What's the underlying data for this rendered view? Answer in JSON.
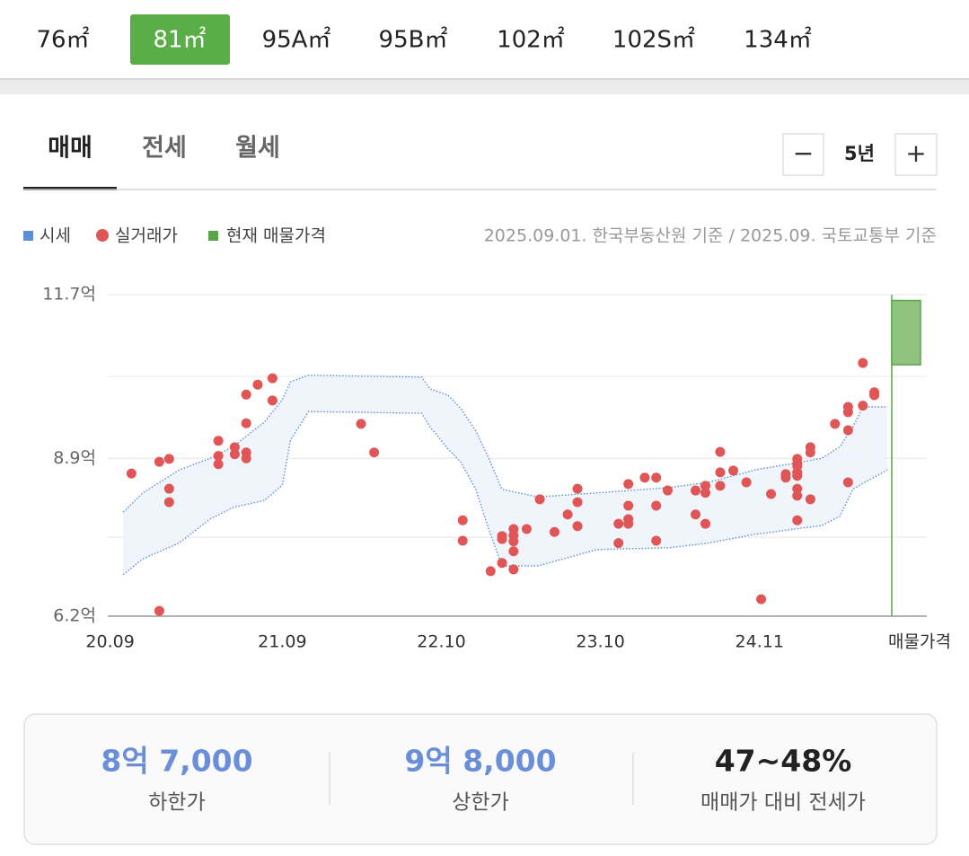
{
  "area_tabs": {
    "items": [
      "76㎡",
      "81㎡",
      "95A㎡",
      "95B㎡",
      "102㎡",
      "102S㎡",
      "134㎡"
    ],
    "active": 1
  },
  "trade_tabs": {
    "items": [
      "매매",
      "전세",
      "월세"
    ],
    "active": 0
  },
  "period": {
    "label": "5년",
    "minus": "−",
    "plus": "+"
  },
  "source_note": "2025.09.01. 한국부동산원 기준 / 2025.09. 국토교통부 기준",
  "chart_data": {
    "type": "scatter",
    "xlim": [
      2020.62,
      2025.45
    ],
    "xticks": [
      {
        "value": 2020.7,
        "label": "20.09"
      },
      {
        "value": 2021.75,
        "label": "21.09"
      },
      {
        "value": 2022.72,
        "label": "22.10"
      },
      {
        "value": 2023.69,
        "label": "23.10"
      },
      {
        "value": 2024.66,
        "label": "24.11"
      }
    ],
    "ylim": [
      6.2,
      11.7
    ],
    "yticks": [
      {
        "value": 11.7,
        "label": "11.7억"
      },
      {
        "value": 8.9,
        "label": "8.9억"
      },
      {
        "value": 6.2,
        "label": "6.2억"
      }
    ],
    "grid": true,
    "band": {
      "name": "시세",
      "color": "#5b8ed6",
      "x": [
        2020.78,
        2020.9,
        2021.12,
        2021.31,
        2021.45,
        2021.64,
        2021.75,
        2021.8,
        2021.91,
        2022.6,
        2022.65,
        2022.76,
        2022.84,
        2022.93,
        2023.01,
        2023.09,
        2023.31,
        2023.67,
        2024.11,
        2024.35,
        2024.63,
        2025.04,
        2025.15,
        2025.23,
        2025.29,
        2025.44
      ],
      "upper": [
        7.98,
        8.31,
        8.7,
        8.9,
        9.1,
        9.52,
        9.9,
        10.21,
        10.32,
        10.29,
        10.09,
        9.98,
        9.75,
        9.37,
        8.9,
        8.37,
        8.24,
        8.31,
        8.4,
        8.49,
        8.7,
        8.9,
        9.1,
        9.44,
        9.78,
        9.78
      ],
      "lower": [
        6.91,
        7.18,
        7.45,
        7.86,
        8.06,
        8.18,
        8.44,
        9.21,
        9.7,
        9.67,
        9.44,
        9.06,
        8.83,
        8.37,
        7.68,
        7.06,
        7.06,
        7.34,
        7.37,
        7.45,
        7.6,
        7.75,
        7.91,
        8.37,
        8.47,
        8.7
      ]
    },
    "series": [
      {
        "name": "실거래가",
        "color": "#e05555",
        "x": [
          2020.83,
          2021.0,
          2021.06,
          2021.06,
          2021.06,
          2021.0,
          2021.36,
          2021.36,
          2021.36,
          2021.46,
          2021.46,
          2021.53,
          2021.53,
          2021.53,
          2021.53,
          2021.6,
          2021.69,
          2021.69,
          2022.23,
          2022.31,
          2022.85,
          2022.85,
          2023.02,
          2023.09,
          2023.09,
          2023.09,
          2023.16,
          2023.16,
          2023.16,
          2023.16,
          2023.16,
          2023.24,
          2023.32,
          2023.41,
          2023.49,
          2023.55,
          2023.55,
          2023.55,
          2023.8,
          2023.8,
          2023.86,
          2023.86,
          2023.86,
          2023.86,
          2023.96,
          2024.03,
          2024.03,
          2024.03,
          2024.1,
          2024.27,
          2024.27,
          2024.33,
          2024.33,
          2024.33,
          2024.42,
          2024.42,
          2024.42,
          2024.5,
          2024.58,
          2024.67,
          2024.73,
          2024.82,
          2024.82,
          2024.89,
          2024.89,
          2024.89,
          2024.89,
          2024.89,
          2024.89,
          2024.89,
          2024.89,
          2024.97,
          2024.97,
          2024.97,
          2025.12,
          2025.2,
          2025.2,
          2025.2,
          2025.2,
          2025.29,
          2025.29,
          2025.36,
          2025.36
        ],
        "values": [
          8.64,
          8.84,
          8.89,
          8.38,
          8.15,
          6.29,
          9.2,
          8.94,
          8.8,
          9.09,
          8.97,
          9.99,
          9.5,
          9.0,
          8.9,
          10.16,
          10.27,
          9.89,
          9.49,
          9.0,
          7.84,
          7.49,
          6.97,
          7.57,
          7.52,
          7.11,
          7.69,
          7.58,
          7.48,
          7.31,
          7.0,
          7.69,
          8.2,
          7.64,
          7.94,
          8.38,
          8.15,
          7.74,
          7.78,
          7.45,
          8.09,
          7.86,
          7.78,
          8.46,
          8.57,
          8.57,
          8.09,
          7.49,
          8.35,
          8.35,
          7.94,
          8.43,
          8.31,
          7.78,
          9.01,
          8.66,
          8.43,
          8.69,
          8.49,
          6.49,
          8.29,
          8.63,
          8.57,
          8.89,
          8.81,
          8.77,
          8.66,
          8.6,
          8.38,
          8.26,
          7.84,
          9.09,
          9.0,
          8.2,
          9.49,
          9.78,
          9.69,
          9.38,
          8.49,
          10.53,
          9.8,
          10.03,
          9.98
        ]
      }
    ],
    "listing": {
      "name": "현재 매물가격",
      "label": "매물가격",
      "color": "#5aa547",
      "low": 10.5,
      "high": 11.6
    }
  },
  "summary": [
    {
      "value": "8억 7,000",
      "label": "하한가"
    },
    {
      "value": "9억 8,000",
      "label": "상한가"
    },
    {
      "value": "47~48%",
      "label": "매매가 대비 전세가"
    }
  ]
}
